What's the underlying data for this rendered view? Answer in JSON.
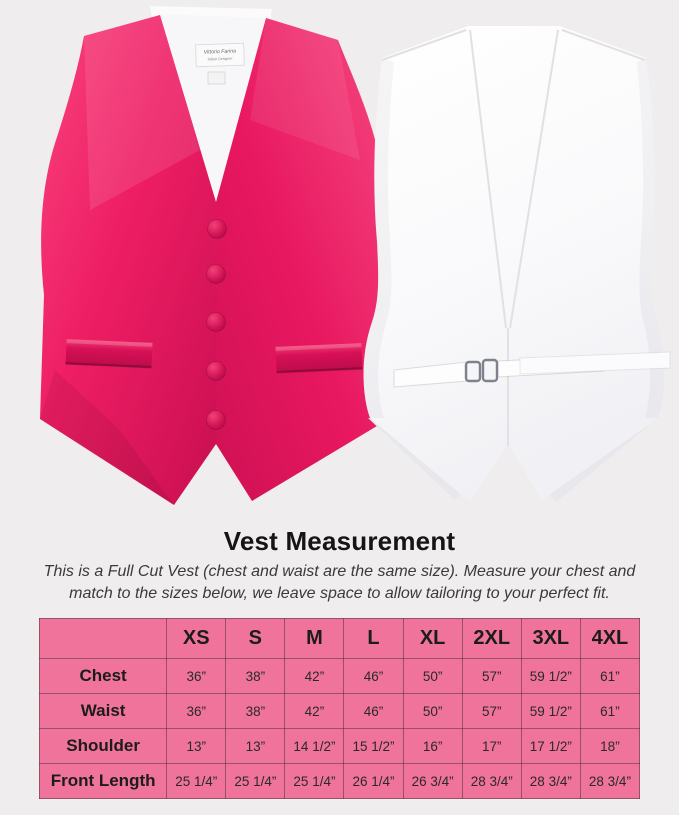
{
  "page": {
    "background": "#efedee"
  },
  "product_photo": {
    "front_vest": "hot-pink satin tuxedo vest, front view, five fabric buttons, two welt pockets",
    "back_vest": "white vest back view with adjustable strap and metal buckle",
    "brand_label": {
      "line1": "Vittorio Farina",
      "line2": "Italian Designer"
    },
    "colors": {
      "vest_pink_light": "#f8437d",
      "vest_pink": "#e91760",
      "vest_pink_dark": "#c20d4d",
      "vest_white": "#fdfdfe",
      "vest_white_shade": "#eeeef3",
      "buckle_gray": "#7d828c"
    }
  },
  "section": {
    "title": "Vest Measurement",
    "description_line1": "This is a Full Cut Vest (chest and waist are the same size). Measure your chest and",
    "description_line2": "match to the sizes below, we leave space to allow tailoring to your perfect fit."
  },
  "size_table": {
    "corner_label": "",
    "columns": [
      "XS",
      "S",
      "M",
      "L",
      "XL",
      "2XL",
      "3XL",
      "4XL"
    ],
    "rows": [
      {
        "label": "Chest",
        "values": [
          "36”",
          "38”",
          "42”",
          "46”",
          "50”",
          "57”",
          "59 1/2”",
          "61”"
        ]
      },
      {
        "label": "Waist",
        "values": [
          "36”",
          "38”",
          "42”",
          "46”",
          "50”",
          "57”",
          "59 1/2”",
          "61”"
        ]
      },
      {
        "label": "Shoulder",
        "values": [
          "13”",
          "13”",
          "14 1/2”",
          "15 1/2”",
          "16”",
          "17”",
          "17 1/2”",
          "18”"
        ]
      },
      {
        "label": "Front Length",
        "values": [
          "25 1/4”",
          "25 1/4”",
          "25 1/4”",
          "26 1/4”",
          "26 3/4”",
          "28 3/4”",
          "28 3/4”",
          "28 3/4”"
        ]
      }
    ],
    "table_bg": "#f0739b"
  },
  "chart_data": {
    "type": "table",
    "title": "Vest Measurement",
    "columns": [
      "XS",
      "S",
      "M",
      "L",
      "XL",
      "2XL",
      "3XL",
      "4XL"
    ],
    "rows": [
      {
        "label": "Chest",
        "values": [
          "36”",
          "38”",
          "42”",
          "46”",
          "50”",
          "57”",
          "59 1/2”",
          "61”"
        ]
      },
      {
        "label": "Waist",
        "values": [
          "36”",
          "38”",
          "42”",
          "46”",
          "50”",
          "57”",
          "59 1/2”",
          "61”"
        ]
      },
      {
        "label": "Shoulder",
        "values": [
          "13”",
          "13”",
          "14 1/2”",
          "15 1/2”",
          "16”",
          "17”",
          "17 1/2”",
          "18”"
        ]
      },
      {
        "label": "Front Length",
        "values": [
          "25 1/4”",
          "25 1/4”",
          "25 1/4”",
          "26 1/4”",
          "26 3/4”",
          "28 3/4”",
          "28 3/4”",
          "28 3/4”"
        ]
      }
    ]
  }
}
